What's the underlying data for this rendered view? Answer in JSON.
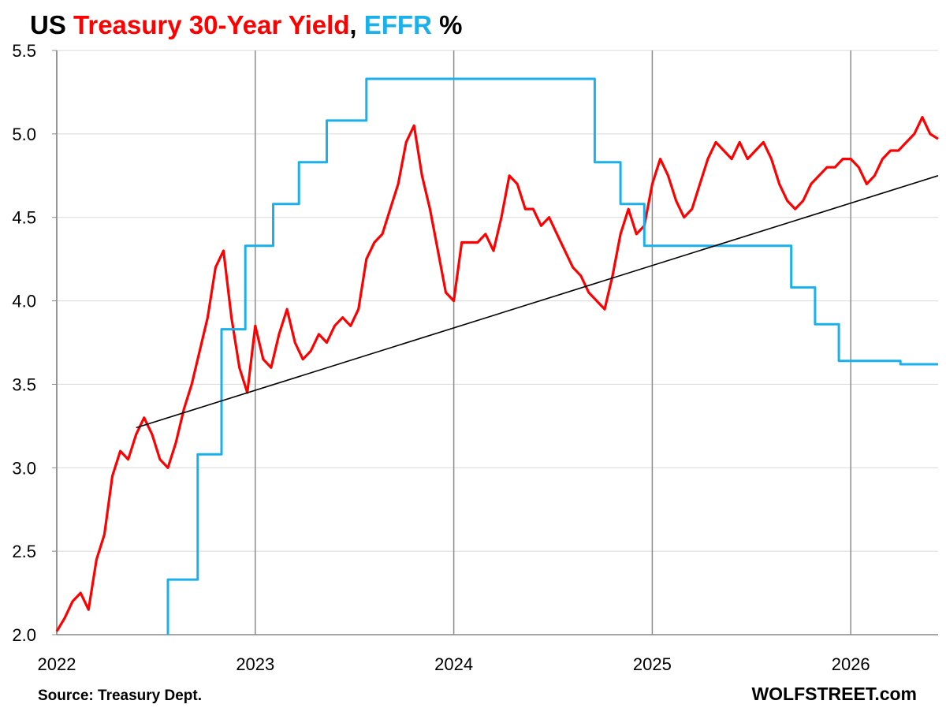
{
  "chart_data": {
    "type": "line",
    "title_parts": [
      {
        "text": "US ",
        "color": "#000000"
      },
      {
        "text": "Treasury 30-Year Yield",
        "color": "#ff0000"
      },
      {
        "text": ", ",
        "color": "#000000"
      },
      {
        "text": "EFFR",
        "color": "#1ab0ec"
      },
      {
        "text": " %",
        "color": "#000000"
      }
    ],
    "source": "Source: Treasury Dept.",
    "credit": "WOLFSTREET.com",
    "xlim": [
      2022.0,
      2026.44
    ],
    "ylim": [
      2.0,
      5.5
    ],
    "y_ticks": [
      "2.0",
      "2.5",
      "3.0",
      "3.5",
      "4.0",
      "4.5",
      "5.0",
      "5.5"
    ],
    "x_ticks": [
      "2022",
      "2023",
      "2024",
      "2025",
      "2026"
    ],
    "grid": "horizontal gridlines; vertical lines at year boundaries",
    "legend": "none (series named in title)",
    "series": [
      {
        "name": "Treasury 30-Year Yield",
        "color": "#ff0000",
        "x": [
          2022.0,
          2022.04,
          2022.08,
          2022.12,
          2022.16,
          2022.2,
          2022.24,
          2022.28,
          2022.32,
          2022.36,
          2022.4,
          2022.44,
          2022.48,
          2022.52,
          2022.56,
          2022.6,
          2022.64,
          2022.68,
          2022.72,
          2022.76,
          2022.8,
          2022.84,
          2022.88,
          2022.92,
          2022.96,
          2023.0,
          2023.04,
          2023.08,
          2023.12,
          2023.16,
          2023.2,
          2023.24,
          2023.28,
          2023.32,
          2023.36,
          2023.4,
          2023.44,
          2023.48,
          2023.52,
          2023.56,
          2023.6,
          2023.64,
          2023.68,
          2023.72,
          2023.76,
          2023.8,
          2023.84,
          2023.88,
          2023.92,
          2023.96,
          2024.0,
          2024.04,
          2024.08,
          2024.12,
          2024.16,
          2024.2,
          2024.24,
          2024.28,
          2024.32,
          2024.36,
          2024.4,
          2024.44,
          2024.48,
          2024.52,
          2024.56,
          2024.6,
          2024.64,
          2024.68,
          2024.72,
          2024.76,
          2024.8,
          2024.84,
          2024.88,
          2024.92,
          2024.96,
          2025.0,
          2025.04,
          2025.08,
          2025.12,
          2025.16,
          2025.2,
          2025.24,
          2025.28,
          2025.32,
          2025.36,
          2025.4,
          2025.44,
          2025.48,
          2025.52,
          2025.56,
          2025.6,
          2025.64,
          2025.68,
          2025.72,
          2025.76,
          2025.8,
          2025.84,
          2025.88,
          2025.92,
          2025.96,
          2026.0,
          2026.04,
          2026.08,
          2026.12,
          2026.16,
          2026.2,
          2026.24,
          2026.28,
          2026.32,
          2026.36,
          2026.4,
          2026.44
        ],
        "y": [
          2.02,
          2.1,
          2.2,
          2.25,
          2.15,
          2.45,
          2.6,
          2.95,
          3.1,
          3.05,
          3.2,
          3.3,
          3.2,
          3.05,
          3.0,
          3.15,
          3.35,
          3.5,
          3.7,
          3.9,
          4.2,
          4.3,
          3.9,
          3.6,
          3.45,
          3.85,
          3.65,
          3.6,
          3.8,
          3.95,
          3.75,
          3.65,
          3.7,
          3.8,
          3.75,
          3.85,
          3.9,
          3.85,
          3.95,
          4.25,
          4.35,
          4.4,
          4.55,
          4.7,
          4.95,
          5.05,
          4.75,
          4.55,
          4.3,
          4.05,
          4.0,
          4.35,
          4.35,
          4.35,
          4.4,
          4.3,
          4.5,
          4.75,
          4.7,
          4.55,
          4.55,
          4.45,
          4.5,
          4.4,
          4.3,
          4.2,
          4.15,
          4.05,
          4.0,
          3.95,
          4.15,
          4.4,
          4.55,
          4.4,
          4.45,
          4.7,
          4.85,
          4.75,
          4.6,
          4.5,
          4.55,
          4.7,
          4.85,
          4.95,
          4.9,
          4.85,
          4.95,
          4.85,
          4.9,
          4.95,
          4.85,
          4.7,
          4.6,
          4.55,
          4.6,
          4.7,
          4.75,
          4.8,
          4.8,
          4.85,
          4.85,
          4.8,
          4.7,
          4.75,
          4.85,
          4.9,
          4.9,
          4.95,
          5.0,
          5.1,
          5.0,
          4.97
        ]
      },
      {
        "name": "EFFR",
        "color": "#1ab0ec",
        "x": [
          2022.56,
          2022.56,
          2022.71,
          2022.71,
          2022.83,
          2022.83,
          2022.95,
          2022.95,
          2023.09,
          2023.09,
          2023.22,
          2023.22,
          2023.36,
          2023.36,
          2023.56,
          2023.56,
          2024.71,
          2024.71,
          2024.84,
          2024.84,
          2024.96,
          2024.96,
          2025.7,
          2025.7,
          2025.82,
          2025.82,
          2025.94,
          2025.94,
          2026.25,
          2026.25,
          2026.44
        ],
        "y": [
          2.0,
          2.33,
          2.33,
          3.08,
          3.08,
          3.83,
          3.83,
          4.33,
          4.33,
          4.58,
          4.58,
          4.83,
          4.83,
          5.08,
          5.08,
          5.33,
          5.33,
          4.83,
          4.83,
          4.58,
          4.58,
          4.33,
          4.33,
          4.08,
          4.08,
          3.86,
          3.86,
          3.64,
          3.64,
          3.62,
          3.62
        ]
      },
      {
        "name": "",
        "color": "#000000",
        "x": [
          2022.4,
          2026.44
        ],
        "y": [
          3.24,
          4.75
        ]
      }
    ]
  }
}
